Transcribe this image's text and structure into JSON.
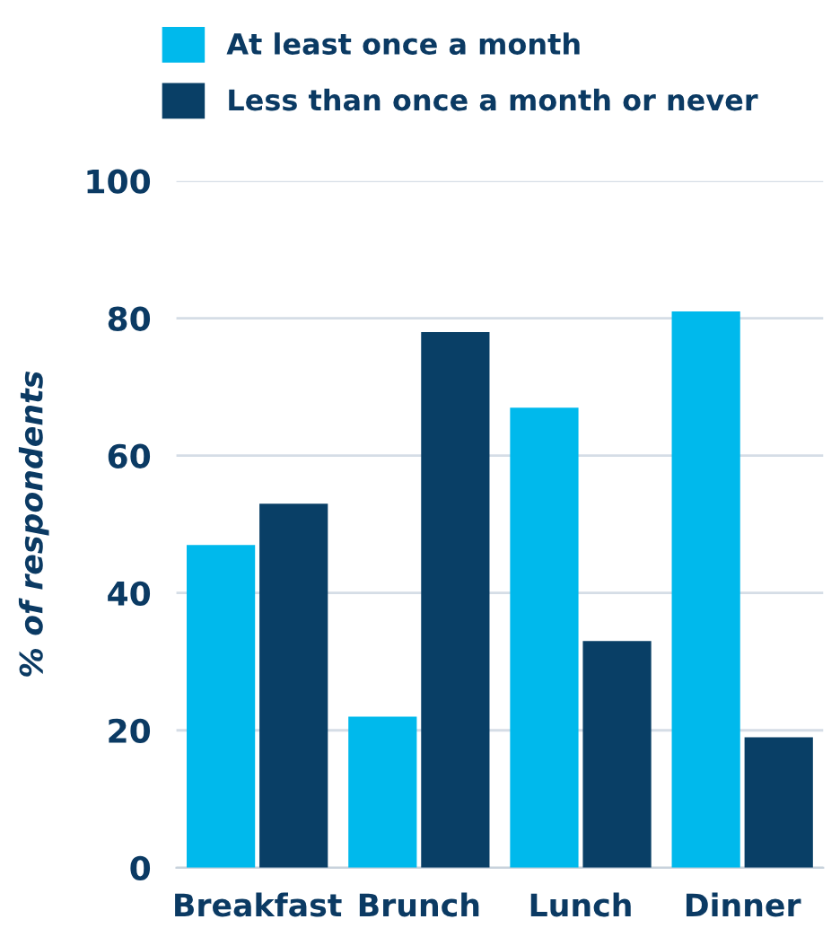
{
  "chart_data": {
    "type": "bar",
    "ylabel": "% of respondents",
    "categories": [
      "Breakfast",
      "Brunch",
      "Lunch",
      "Dinner"
    ],
    "series": [
      {
        "name": "At least once a month",
        "color": "#00b9ec",
        "values": [
          47,
          22,
          67,
          81
        ]
      },
      {
        "name": "Less than once a month or never",
        "color": "#093f66",
        "values": [
          53,
          78,
          33,
          19
        ]
      }
    ],
    "ylim": [
      0,
      100
    ],
    "yticks": [
      0,
      20,
      40,
      60,
      80,
      100
    ],
    "grid": "y",
    "legend": "top"
  }
}
